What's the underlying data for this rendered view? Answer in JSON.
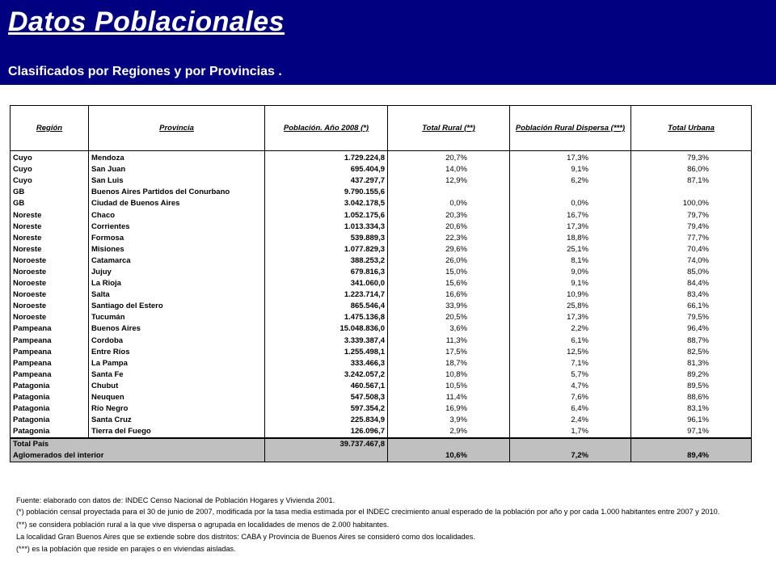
{
  "header": {
    "title": "Datos Poblacionales",
    "subtitle": "Clasificados por Regiones y por Provincias ."
  },
  "table": {
    "columns": [
      "Región",
      "Provincia",
      "Población. Año 2008 (*)",
      "Total Rural (**)",
      "Población Rural Dispersa (***)",
      "Total Urbana"
    ],
    "rows": [
      [
        "Cuyo",
        "Mendoza",
        "1.729.224,8",
        "20,7%",
        "17,3%",
        "79,3%"
      ],
      [
        "Cuyo",
        "San Juan",
        "695.404,9",
        "14,0%",
        "9,1%",
        "86,0%"
      ],
      [
        "Cuyo",
        "San Luis",
        "437.297,7",
        "12,9%",
        "6,2%",
        "87,1%"
      ],
      [
        "GB",
        "Buenos Aires Partidos del Conurbano",
        "9.790.155,6",
        "",
        "",
        ""
      ],
      [
        "GB",
        "Ciudad de Buenos Aires",
        "3.042.178,5",
        "0,0%",
        "0,0%",
        "100,0%"
      ],
      [
        "Noreste",
        "Chaco",
        "1.052.175,6",
        "20,3%",
        "16,7%",
        "79,7%"
      ],
      [
        "Noreste",
        "Corrientes",
        "1.013.334,3",
        "20,6%",
        "17,3%",
        "79,4%"
      ],
      [
        "Noreste",
        "Formosa",
        "539.889,3",
        "22,3%",
        "18,8%",
        "77,7%"
      ],
      [
        "Noreste",
        "Misiones",
        "1.077.829,3",
        "29,6%",
        "25,1%",
        "70,4%"
      ],
      [
        "Noroeste",
        "Catamarca",
        "388.253,2",
        "26,0%",
        "8,1%",
        "74,0%"
      ],
      [
        "Noroeste",
        "Jujuy",
        "679.816,3",
        "15,0%",
        "9,0%",
        "85,0%"
      ],
      [
        "Noroeste",
        "La Rioja",
        "341.060,0",
        "15,6%",
        "9,1%",
        "84,4%"
      ],
      [
        "Noroeste",
        "Salta",
        "1.223.714,7",
        "16,6%",
        "10,9%",
        "83,4%"
      ],
      [
        "Noroeste",
        "Santiago del Estero",
        "865.546,4",
        "33,9%",
        "25,8%",
        "66,1%"
      ],
      [
        "Noroeste",
        "Tucumán",
        "1.475.136,8",
        "20,5%",
        "17,3%",
        "79,5%"
      ],
      [
        "Pampeana",
        "Buenos Aires",
        "15.048.836,0",
        "3,6%",
        "2,2%",
        "96,4%"
      ],
      [
        "Pampeana",
        "Cordoba",
        "3.339.387,4",
        "11,3%",
        "6,1%",
        "88,7%"
      ],
      [
        "Pampeana",
        "Entre Ríos",
        "1.255.498,1",
        "17,5%",
        "12,5%",
        "82,5%"
      ],
      [
        "Pampeana",
        "La Pampa",
        "333.466,3",
        "18,7%",
        "7,1%",
        "81,3%"
      ],
      [
        "Pampeana",
        "Santa Fe",
        "3.242.057,2",
        "10,8%",
        "5,7%",
        "89,2%"
      ],
      [
        "Patagonia",
        "Chubut",
        "460.567,1",
        "10,5%",
        "4,7%",
        "89,5%"
      ],
      [
        "Patagonia",
        "Neuquen",
        "547.508,3",
        "11,4%",
        "7,6%",
        "88,6%"
      ],
      [
        "Patagonia",
        "Río Negro",
        "597.354,2",
        "16,9%",
        "6,4%",
        "83,1%"
      ],
      [
        "Patagonia",
        "Santa Cruz",
        "225.834,9",
        "3,9%",
        "2,4%",
        "96,1%"
      ],
      [
        "Patagonia",
        "Tierra del Fuego",
        "126.096,7",
        "2,9%",
        "1,7%",
        "97,1%"
      ]
    ],
    "total": {
      "label": "Total País",
      "population": "39.737.467,8"
    },
    "aglomerados": {
      "label": "Aglomerados del interior",
      "rural": "10,6%",
      "dispersa": "7,2%",
      "urbana": "89,4%"
    }
  },
  "notes": {
    "fuente": "Fuente: elaborado con datos de: INDEC Censo Nacional de Población Hogares y Vivienda 2001.",
    "nota1": "(*) población censal proyectada para el 30 de junio de 2007, modificada por la tasa media estimada por el INDEC crecimiento anual esperado de la población por año y por cada 1.000 habitantes entre 2007 y 2010.",
    "nota2": "(**) se considera población rural a la que vive dispersa o agrupada en localidades de menos de 2.000 habitantes.",
    "nota3": "La localidad Gran Buenos Aires que se extiende sobre dos distritos: CABA y Provincia de Buenos Aires se consideró como dos localidades.",
    "nota4": "(***) es la población que reside en parajes o en viviendas aisladas."
  }
}
